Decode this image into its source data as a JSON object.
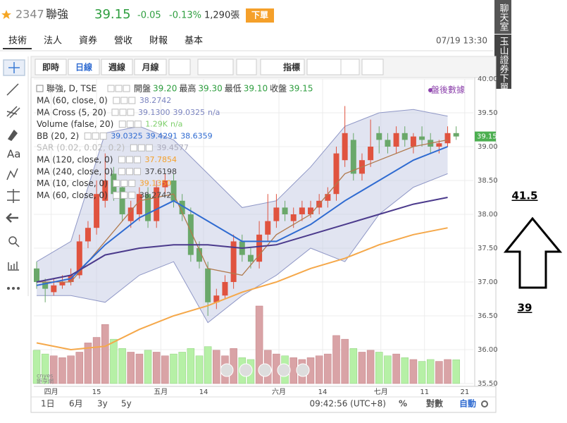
{
  "header": {
    "code": "2347",
    "name": "聯強",
    "price": "39.15",
    "change": "-0.05",
    "change_pct": "-0.13%",
    "volume": "1,290張",
    "order_button": "下單"
  },
  "tabs": [
    "技術",
    "法人",
    "資券",
    "營收",
    "財報",
    "基本"
  ],
  "timestamp": "07/19 13:30",
  "toolbar": [
    "即時",
    "日線",
    "週線",
    "月線",
    "指標"
  ],
  "side_tabs": [
    "聊天室",
    "玉山證券下單"
  ],
  "left_tools_text": "Aa",
  "legend": {
    "symbol": "聯強, D, TSE",
    "ohlc": [
      "開盤",
      "39.20",
      "最高",
      "39.30",
      "最低",
      "39.10",
      "收盤",
      "39.15"
    ],
    "rows": [
      {
        "name": "MA (60, close, 0)",
        "values": [
          "38.2742"
        ]
      },
      {
        "name": "MA Cross (5, 20)",
        "values": [
          "39.1300",
          "39.0325",
          "n/a"
        ]
      },
      {
        "name": "Volume (false, 20)",
        "values": [
          "1.29K",
          "n/a"
        ]
      },
      {
        "name": "BB (20, 2)",
        "values": [
          "39.0325",
          "39.4291",
          "38.6359"
        ]
      },
      {
        "name": "SAR (0.02, 0.02, 0.2)",
        "values": [
          "39.4577"
        ]
      },
      {
        "name": "MA (120, close, 0)",
        "values": [
          "37.7854"
        ]
      },
      {
        "name": "MA (240, close, 0)",
        "values": [
          "37.6198"
        ]
      },
      {
        "name": "MA (10, close, 0)",
        "values": [
          "39.1350"
        ]
      },
      {
        "name": "MA (60, close, 0)",
        "values": [
          "38.2742"
        ]
      }
    ]
  },
  "after_hours": "盤後數據",
  "watermark": [
    "cnyes",
    "鉅亨網"
  ],
  "bottom_bar": {
    "ranges": [
      "1日",
      "6月",
      "3y",
      "5y"
    ],
    "clock": "09:42:56 (UTC+8)",
    "options": [
      "%",
      "對數",
      "自動"
    ]
  },
  "annotation": {
    "upper": "41.5",
    "lower": "39"
  },
  "chart_data": {
    "type": "candlestick",
    "up_color": "#e0533f",
    "down_color": "#6aa86a",
    "volume_up_color": "#d9a3a6",
    "volume_down_color": "#b6f0a6",
    "open": [
      37.2,
      37.0,
      36.85,
      36.95,
      37.0,
      37.1,
      37.6,
      37.8,
      38.2,
      38.6,
      38.4,
      37.9,
      38.0,
      38.3,
      37.9,
      38.4,
      38.5,
      38.2,
      38.0,
      37.5,
      37.2,
      36.7,
      36.8,
      37.0,
      37.6,
      37.4,
      37.3,
      37.7,
      37.9,
      38.1,
      37.9,
      38.0,
      38.0,
      38.1,
      38.2,
      38.3,
      38.8,
      39.1,
      38.6,
      38.8,
      39.2,
      39.1,
      39.0,
      39.2,
      39.0,
      39.15,
      39.1,
      39.0,
      39.05,
      39.2
    ],
    "high": [
      37.3,
      37.05,
      37.05,
      37.1,
      37.2,
      37.7,
      37.9,
      38.5,
      38.9,
      38.7,
      38.5,
      38.2,
      38.4,
      38.4,
      38.5,
      38.6,
      38.6,
      38.3,
      38.1,
      37.6,
      37.3,
      36.9,
      37.1,
      37.7,
      37.7,
      37.5,
      37.9,
      38.3,
      38.3,
      38.2,
      38.1,
      38.2,
      38.2,
      38.3,
      38.4,
      39.0,
      39.6,
      39.2,
      38.9,
      39.4,
      39.3,
      39.2,
      39.3,
      39.3,
      39.2,
      39.3,
      39.2,
      39.1,
      39.3,
      39.3
    ],
    "low": [
      36.9,
      36.7,
      36.8,
      36.9,
      36.95,
      37.05,
      37.5,
      37.7,
      38.1,
      38.2,
      37.9,
      37.8,
      37.9,
      37.8,
      37.8,
      38.3,
      38.1,
      37.9,
      37.3,
      37.2,
      36.5,
      36.6,
      36.75,
      36.9,
      37.3,
      37.2,
      37.2,
      37.6,
      37.8,
      37.9,
      37.8,
      37.9,
      37.95,
      38.0,
      38.1,
      38.2,
      38.7,
      38.5,
      38.5,
      38.7,
      38.9,
      38.9,
      38.9,
      39.0,
      38.9,
      39.0,
      38.9,
      38.9,
      39.0,
      39.1
    ],
    "close": [
      37.0,
      36.9,
      36.95,
      37.0,
      37.1,
      37.6,
      37.8,
      38.3,
      38.5,
      38.3,
      38.0,
      38.1,
      38.3,
      37.9,
      38.4,
      38.5,
      38.2,
      38.0,
      37.4,
      37.3,
      36.7,
      36.8,
      37.0,
      37.6,
      37.4,
      37.3,
      37.7,
      37.9,
      38.1,
      38.0,
      38.0,
      38.1,
      38.1,
      38.2,
      38.3,
      38.9,
      39.2,
      38.6,
      38.8,
      39.0,
      39.1,
      39.0,
      39.2,
      39.1,
      39.15,
      39.1,
      39.0,
      39.05,
      39.2,
      39.15
    ],
    "volume": [
      1800,
      1600,
      1500,
      1400,
      1500,
      1700,
      2200,
      2500,
      3200,
      2400,
      1900,
      1700,
      1600,
      1800,
      1700,
      1500,
      1600,
      1700,
      1900,
      1500,
      2000,
      1800,
      1500,
      1900,
      1400,
      1300,
      4200,
      1800,
      1600,
      1500,
      1400,
      1300,
      1400,
      1500,
      1600,
      2600,
      2400,
      1900,
      1700,
      1800,
      1700,
      1500,
      1600,
      1400,
      1300,
      1200,
      1300,
      1200,
      1300,
      1290
    ],
    "line_x": [
      0,
      4,
      8,
      12,
      16,
      20,
      24,
      28,
      32,
      36,
      40,
      44,
      48
    ],
    "bands": {
      "fill": "#c9cde6",
      "stroke": "#8f97c6",
      "upper": [
        37.3,
        37.6,
        39.2,
        39.3,
        39.1,
        38.6,
        38.1,
        38.2,
        38.7,
        39.3,
        39.5,
        39.55,
        39.45
      ],
      "lower": [
        36.8,
        36.8,
        36.7,
        37.1,
        37.3,
        36.4,
        36.8,
        37.1,
        37.5,
        37.3,
        38.0,
        38.4,
        38.6
      ]
    },
    "series": [
      {
        "color": "#b07a4e",
        "values": [
          37.0,
          37.0,
          37.6,
          38.2,
          38.3,
          37.2,
          37.1,
          37.7,
          38.0,
          38.6,
          38.8,
          39.0,
          39.1
        ]
      },
      {
        "color": "#2f6bd1",
        "values": [
          36.95,
          37.05,
          37.55,
          37.95,
          38.2,
          37.9,
          37.6,
          37.6,
          37.85,
          38.2,
          38.5,
          38.8,
          39.0
        ]
      },
      {
        "color": "#4b3a8c",
        "values": [
          37.0,
          37.1,
          37.4,
          37.5,
          37.55,
          37.55,
          37.5,
          37.55,
          37.7,
          37.85,
          38.0,
          38.15,
          38.25
        ]
      },
      {
        "color": "#f5a84a",
        "values": [
          36.1,
          36.0,
          36.05,
          36.3,
          36.5,
          36.65,
          36.85,
          37.0,
          37.2,
          37.35,
          37.55,
          37.7,
          37.8
        ]
      }
    ],
    "xlim": [
      -0.33,
      51
    ],
    "xticks": [
      {
        "value": 1.7,
        "label": "四月"
      },
      {
        "value": 7,
        "label": "15"
      },
      {
        "value": 14.5,
        "label": "五月"
      },
      {
        "value": 19.5,
        "label": "14"
      },
      {
        "value": 28.3,
        "label": "六月"
      },
      {
        "value": 33.4,
        "label": "14"
      },
      {
        "value": 40.2,
        "label": "七月"
      },
      {
        "value": 45.3,
        "label": "11"
      },
      {
        "value": 50,
        "label": "21"
      }
    ],
    "ylim": [
      35.5,
      40.0
    ],
    "yticks": [
      {
        "value": 35.5,
        "label": "35.50"
      },
      {
        "value": 36.0,
        "label": "36.00"
      },
      {
        "value": 36.5,
        "label": "36.50"
      },
      {
        "value": 37.0,
        "label": "37.00"
      },
      {
        "value": 37.5,
        "label": "37.50"
      },
      {
        "value": 38.0,
        "label": "38.00"
      },
      {
        "value": 38.5,
        "label": "38.50"
      },
      {
        "value": 39.0,
        "label": "39.00"
      },
      {
        "value": 39.5,
        "label": "39.50"
      },
      {
        "value": 40.0,
        "label": "40.00"
      }
    ],
    "grid": true
  }
}
